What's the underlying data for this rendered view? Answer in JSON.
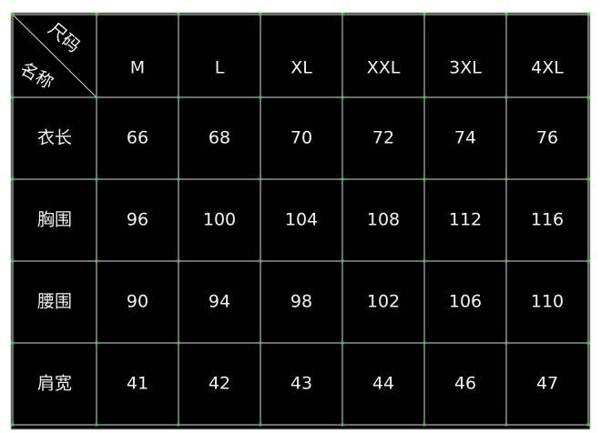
{
  "table": {
    "corner": {
      "top": "尺码",
      "bottom": "名称"
    },
    "columns": [
      "M",
      "L",
      "XL",
      "XXL",
      "3XL",
      "4XL"
    ],
    "rows": [
      {
        "label": "衣长",
        "values": [
          66,
          68,
          70,
          72,
          74,
          76
        ]
      },
      {
        "label": "胸围",
        "values": [
          96,
          100,
          104,
          108,
          112,
          116
        ]
      },
      {
        "label": "腰围",
        "values": [
          90,
          94,
          98,
          102,
          106,
          110
        ]
      },
      {
        "label": "肩宽",
        "values": [
          41,
          42,
          43,
          44,
          46,
          47
        ]
      }
    ]
  }
}
